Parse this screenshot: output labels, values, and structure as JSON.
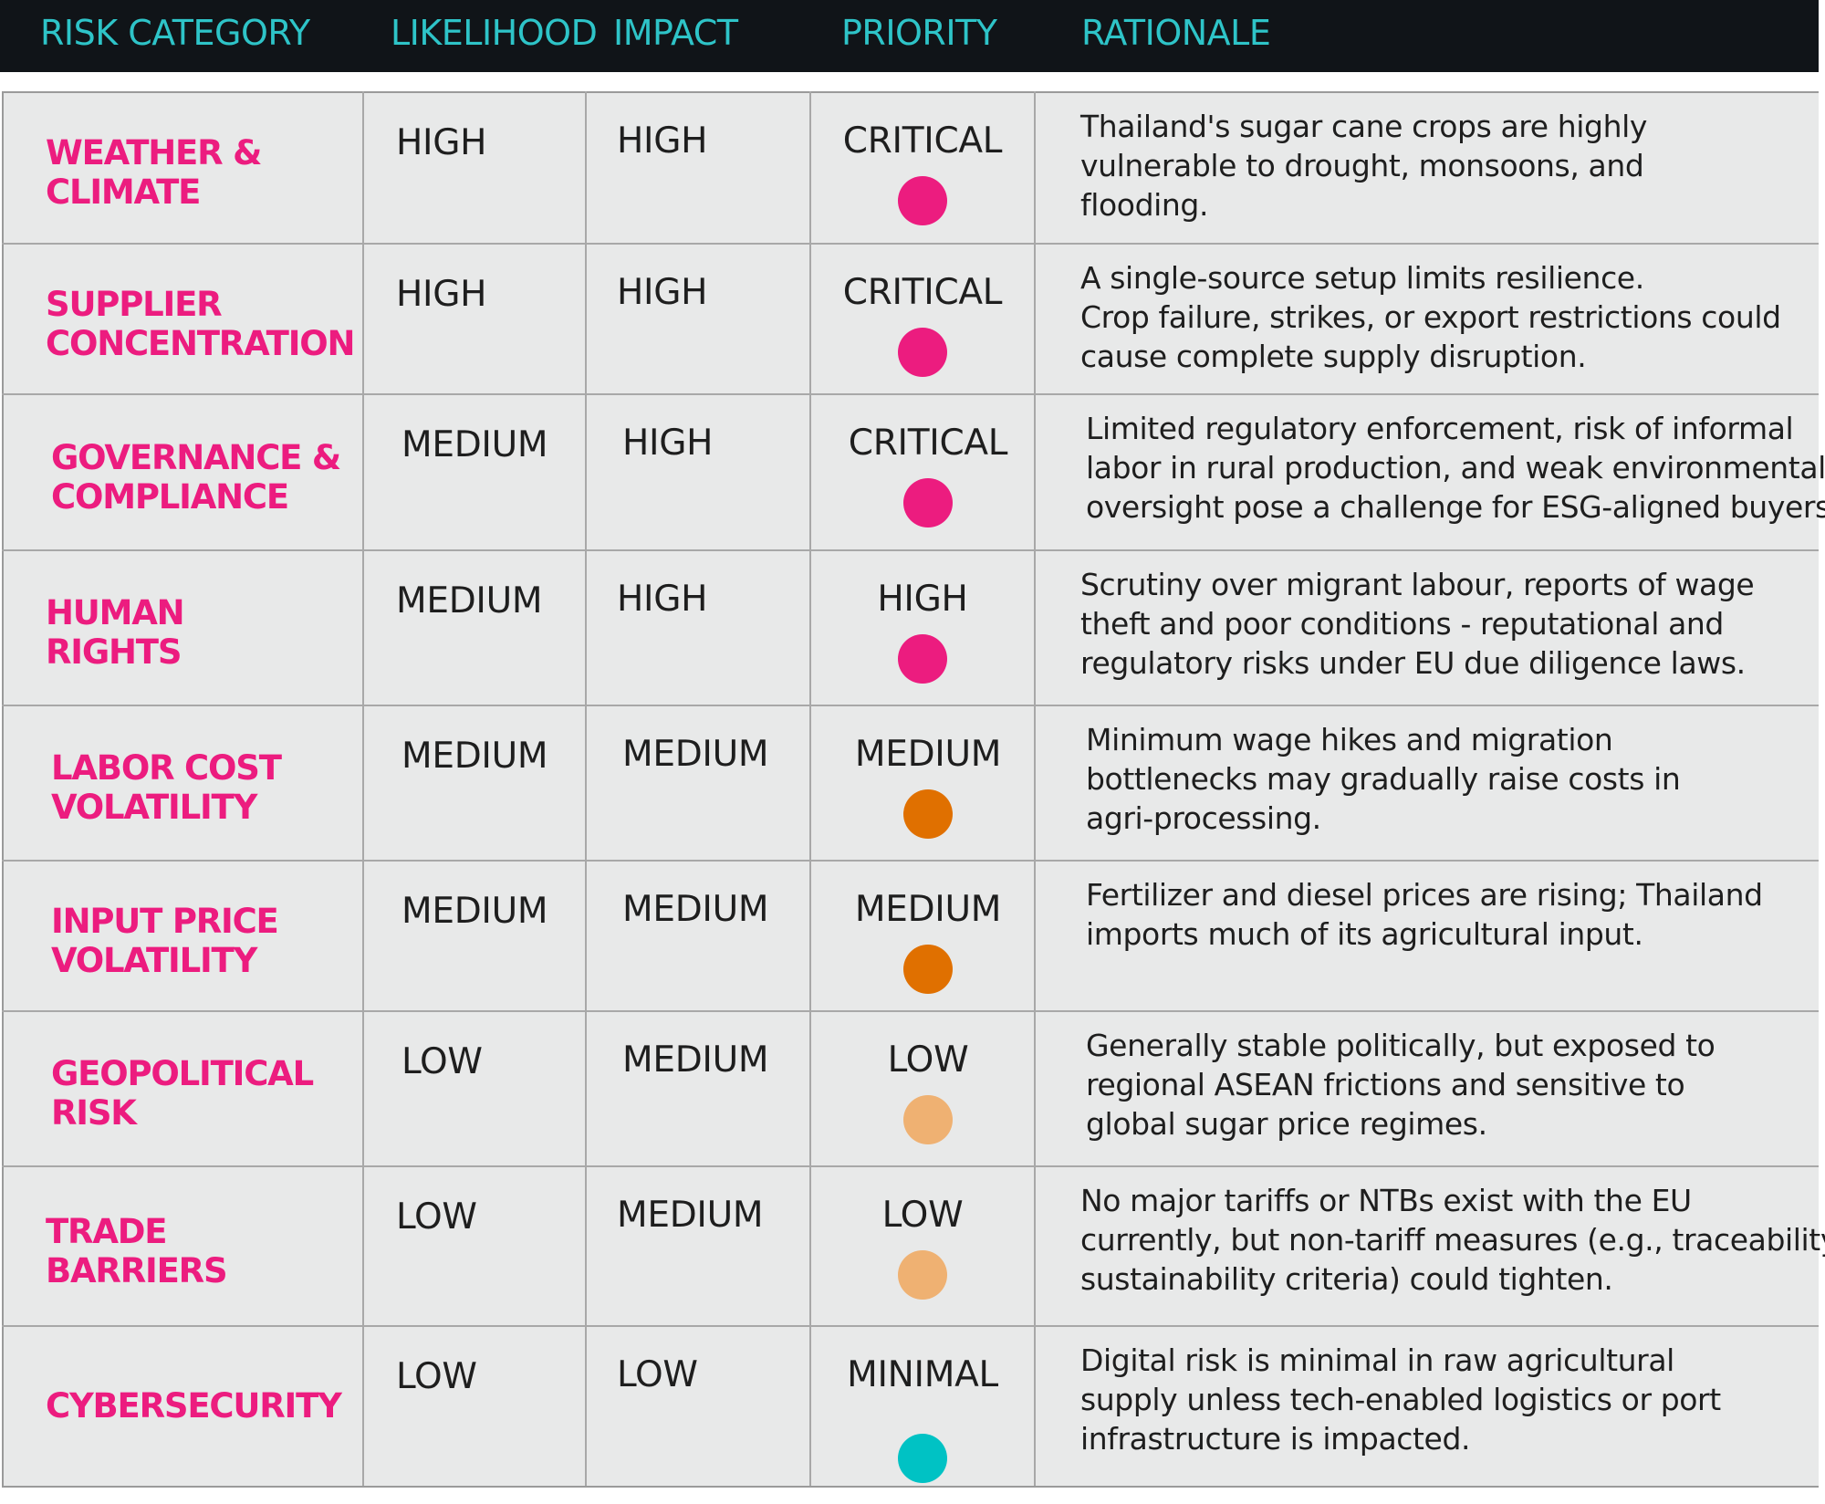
{
  "header": {
    "risk_category": "RISK CATEGORY",
    "likelihood": "LIKELIHOOD",
    "impact": "IMPACT",
    "priority": "PRIORITY",
    "rationale": "RATIONALE"
  },
  "colors": {
    "critical": "#ec1c7f",
    "high": "#ec1c7f",
    "medium": "#e07000",
    "low": "#efb172",
    "minimal": "#00c2c4"
  },
  "rows": [
    {
      "category": [
        "WEATHER &",
        "CLIMATE"
      ],
      "likelihood": "HIGH",
      "impact": "HIGH",
      "priority": "CRITICAL",
      "priority_color": "#ec1c7f",
      "rationale": [
        "Thailand's sugar cane crops are highly",
        "vulnerable to drought, monsoons, and",
        "flooding."
      ]
    },
    {
      "category": [
        "SUPPLIER",
        "CONCENTRATION"
      ],
      "likelihood": "HIGH",
      "impact": "HIGH",
      "priority": "CRITICAL",
      "priority_color": "#ec1c7f",
      "rationale": [
        "A single-source setup limits resilience.",
        "Crop failure, strikes, or export restrictions could",
        "cause complete supply disruption."
      ]
    },
    {
      "category": [
        "GOVERNANCE &",
        "COMPLIANCE"
      ],
      "likelihood": "MEDIUM",
      "impact": "HIGH",
      "priority": "CRITICAL",
      "priority_color": "#ec1c7f",
      "rationale": [
        "Limited regulatory enforcement, risk of informal",
        "labor in rural production, and weak environmental",
        "oversight pose a challenge for ESG-aligned buyers."
      ]
    },
    {
      "category": [
        "HUMAN",
        "RIGHTS"
      ],
      "likelihood": "MEDIUM",
      "impact": "HIGH",
      "priority": "HIGH",
      "priority_color": "#ec1c7f",
      "rationale": [
        "Scrutiny over migrant labour, reports of wage",
        "theft and poor conditions - reputational and",
        "regulatory risks under EU due diligence laws."
      ]
    },
    {
      "category": [
        "LABOR COST",
        "VOLATILITY"
      ],
      "likelihood": "MEDIUM",
      "impact": "MEDIUM",
      "priority": "MEDIUM",
      "priority_color": "#e07000",
      "rationale": [
        "Minimum wage hikes and migration",
        "bottlenecks may gradually raise costs in",
        "agri-processing."
      ]
    },
    {
      "category": [
        "INPUT PRICE",
        "VOLATILITY"
      ],
      "likelihood": "MEDIUM",
      "impact": "MEDIUM",
      "priority": "MEDIUM",
      "priority_color": "#e07000",
      "rationale": [
        "Fertilizer and diesel prices are rising; Thailand",
        "imports much of its agricultural input."
      ]
    },
    {
      "category": [
        "GEOPOLITICAL",
        "RISK"
      ],
      "likelihood": "LOW",
      "impact": "MEDIUM",
      "priority": "LOW",
      "priority_color": "#efb172",
      "rationale": [
        "Generally stable politically, but exposed to",
        "regional ASEAN frictions and sensitive to",
        "global sugar price regimes."
      ]
    },
    {
      "category": [
        "TRADE",
        "BARRIERS"
      ],
      "likelihood": "LOW",
      "impact": "MEDIUM",
      "priority": "LOW",
      "priority_color": "#efb172",
      "rationale": [
        "No major tariffs or NTBs exist with the EU",
        "currently, but non-tariff measures (e.g., traceability,",
        "sustainability criteria) could tighten."
      ]
    },
    {
      "category": [
        "CYBERSECURITY"
      ],
      "likelihood": "LOW",
      "impact": "LOW",
      "priority": "MINIMAL",
      "priority_color": "#00c2c4",
      "rationale": [
        "Digital risk is minimal in raw agricultural",
        "supply unless tech-enabled logistics or port",
        "infrastructure is impacted."
      ]
    }
  ]
}
